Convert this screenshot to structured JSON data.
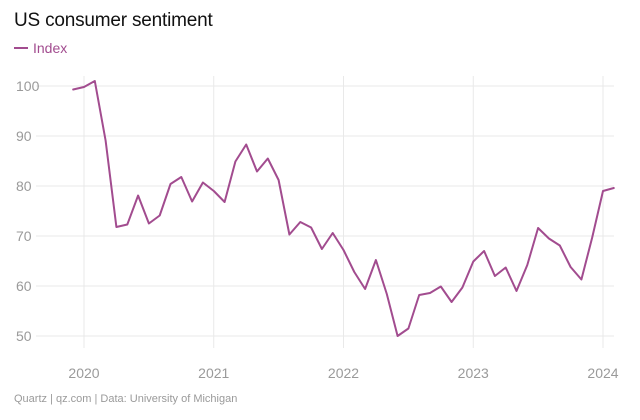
{
  "header": {
    "title": "US consumer sentiment"
  },
  "footer": {
    "source": "Quartz | qz.com | Data: University of Michigan"
  },
  "colors": {
    "series": "#a24c8f",
    "grid": "#e9e9e9",
    "tick_text": "#9a9a9a",
    "title_text": "#111111"
  },
  "chart_data": {
    "type": "line",
    "title": "US consumer sentiment",
    "xlabel": "",
    "ylabel": "",
    "legend_position": "top-left",
    "grid": true,
    "x_ticks": [
      "2020",
      "2021",
      "2022",
      "2023",
      "2024"
    ],
    "y_ticks": [
      50,
      60,
      70,
      80,
      90,
      100
    ],
    "xlim": [
      "2019-12",
      "2024-02"
    ],
    "ylim": [
      47,
      103
    ],
    "series": [
      {
        "name": "Index",
        "x": [
          "2019-12",
          "2020-01",
          "2020-02",
          "2020-03",
          "2020-04",
          "2020-05",
          "2020-06",
          "2020-07",
          "2020-08",
          "2020-09",
          "2020-10",
          "2020-11",
          "2020-12",
          "2021-01",
          "2021-02",
          "2021-03",
          "2021-04",
          "2021-05",
          "2021-06",
          "2021-07",
          "2021-08",
          "2021-09",
          "2021-10",
          "2021-11",
          "2021-12",
          "2022-01",
          "2022-02",
          "2022-03",
          "2022-04",
          "2022-05",
          "2022-06",
          "2022-07",
          "2022-08",
          "2022-09",
          "2022-10",
          "2022-11",
          "2022-12",
          "2023-01",
          "2023-02",
          "2023-03",
          "2023-04",
          "2023-05",
          "2023-06",
          "2023-07",
          "2023-08",
          "2023-09",
          "2023-10",
          "2023-11",
          "2023-12",
          "2024-01",
          "2024-02"
        ],
        "values": [
          99.3,
          99.8,
          101.0,
          89.1,
          71.8,
          72.3,
          78.1,
          72.5,
          74.1,
          80.4,
          81.8,
          76.9,
          80.7,
          79.0,
          76.8,
          84.9,
          88.3,
          82.9,
          85.5,
          81.2,
          70.3,
          72.8,
          71.7,
          67.4,
          70.6,
          67.2,
          62.8,
          59.4,
          65.2,
          58.4,
          50.0,
          51.5,
          58.2,
          58.6,
          59.9,
          56.8,
          59.7,
          64.9,
          67.0,
          62.0,
          63.7,
          59.0,
          64.2,
          71.6,
          69.5,
          68.1,
          63.8,
          61.3,
          69.7,
          79.0,
          79.6
        ]
      }
    ]
  }
}
